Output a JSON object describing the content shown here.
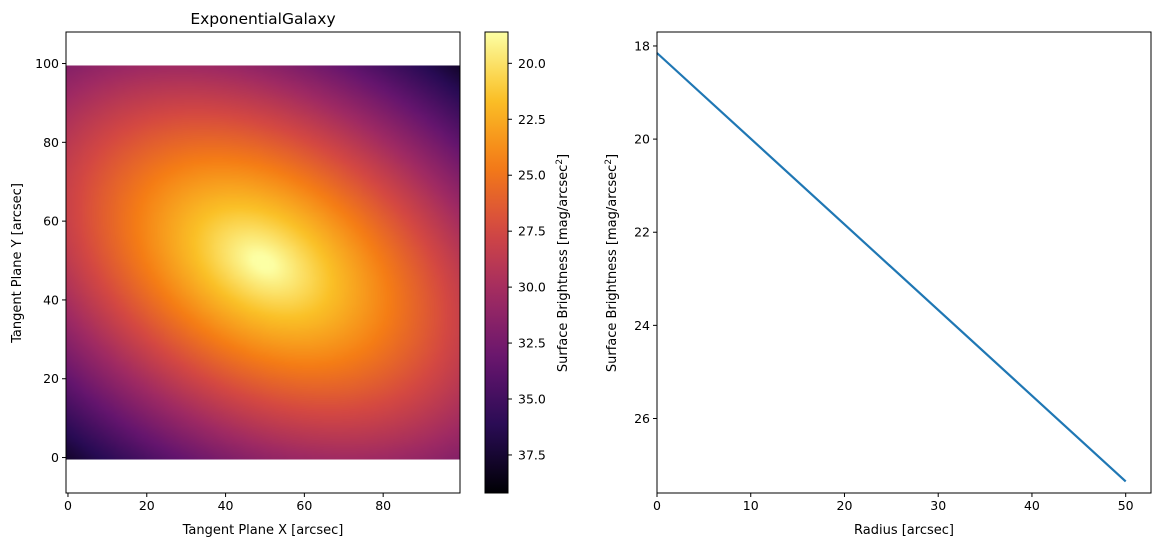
{
  "chart_data": [
    {
      "type": "heatmap",
      "title": "ExponentialGalaxy",
      "xlabel": "Tangent Plane X [arcsec]",
      "ylabel": "Tangent Plane Y [arcsec]",
      "xlim": [
        -0.5,
        99.5
      ],
      "ylim": [
        -9,
        108
      ],
      "xticks": [
        0,
        20,
        40,
        60,
        80
      ],
      "yticks": [
        0,
        20,
        40,
        60,
        80,
        100
      ],
      "image_extent": {
        "x": [
          -0.5,
          99.5
        ],
        "y": [
          -0.5,
          99.5
        ]
      },
      "colormap": "inferno",
      "colormap_reversed": true,
      "grid": false,
      "galaxy_model": {
        "profile": "exponential",
        "center": [
          49.5,
          49.5
        ],
        "surface_brightness_center": 18.1,
        "magnitude_slope_per_arcsec": 0.185,
        "axis_ratio": 0.65,
        "position_angle_deg": -30
      },
      "colorbar": {
        "label": "Surface Brightness [mag/arcsec²]",
        "label_main": "Surface Brightness [mag/arcsec",
        "label_sup": "2",
        "label_end": "]",
        "range": [
          18.6,
          39.2
        ],
        "ticks": [
          "20.0",
          "22.5",
          "25.0",
          "27.5",
          "30.0",
          "32.5",
          "35.0",
          "37.5"
        ],
        "inverted": true
      }
    },
    {
      "type": "line",
      "title": "",
      "xlabel": "Radius [arcsec]",
      "ylabel": "Surface Brightness [mag/arcsec²]",
      "ylabel_main": "Surface Brightness [mag/arcsec",
      "ylabel_sup": "2",
      "ylabel_end": "]",
      "xlim": [
        0,
        52.7
      ],
      "ylim": [
        27.6,
        17.7
      ],
      "y_inverted": true,
      "xticks": [
        0,
        10,
        20,
        30,
        40,
        50
      ],
      "yticks": [
        18,
        20,
        22,
        24,
        26
      ],
      "grid": false,
      "series": [
        {
          "color": "#1f77b4",
          "x": [
            0,
            50
          ],
          "y": [
            18.15,
            27.35
          ]
        }
      ]
    }
  ],
  "colors": {
    "line": "#1f77b4",
    "axes": "#000000",
    "background": "#ffffff"
  }
}
